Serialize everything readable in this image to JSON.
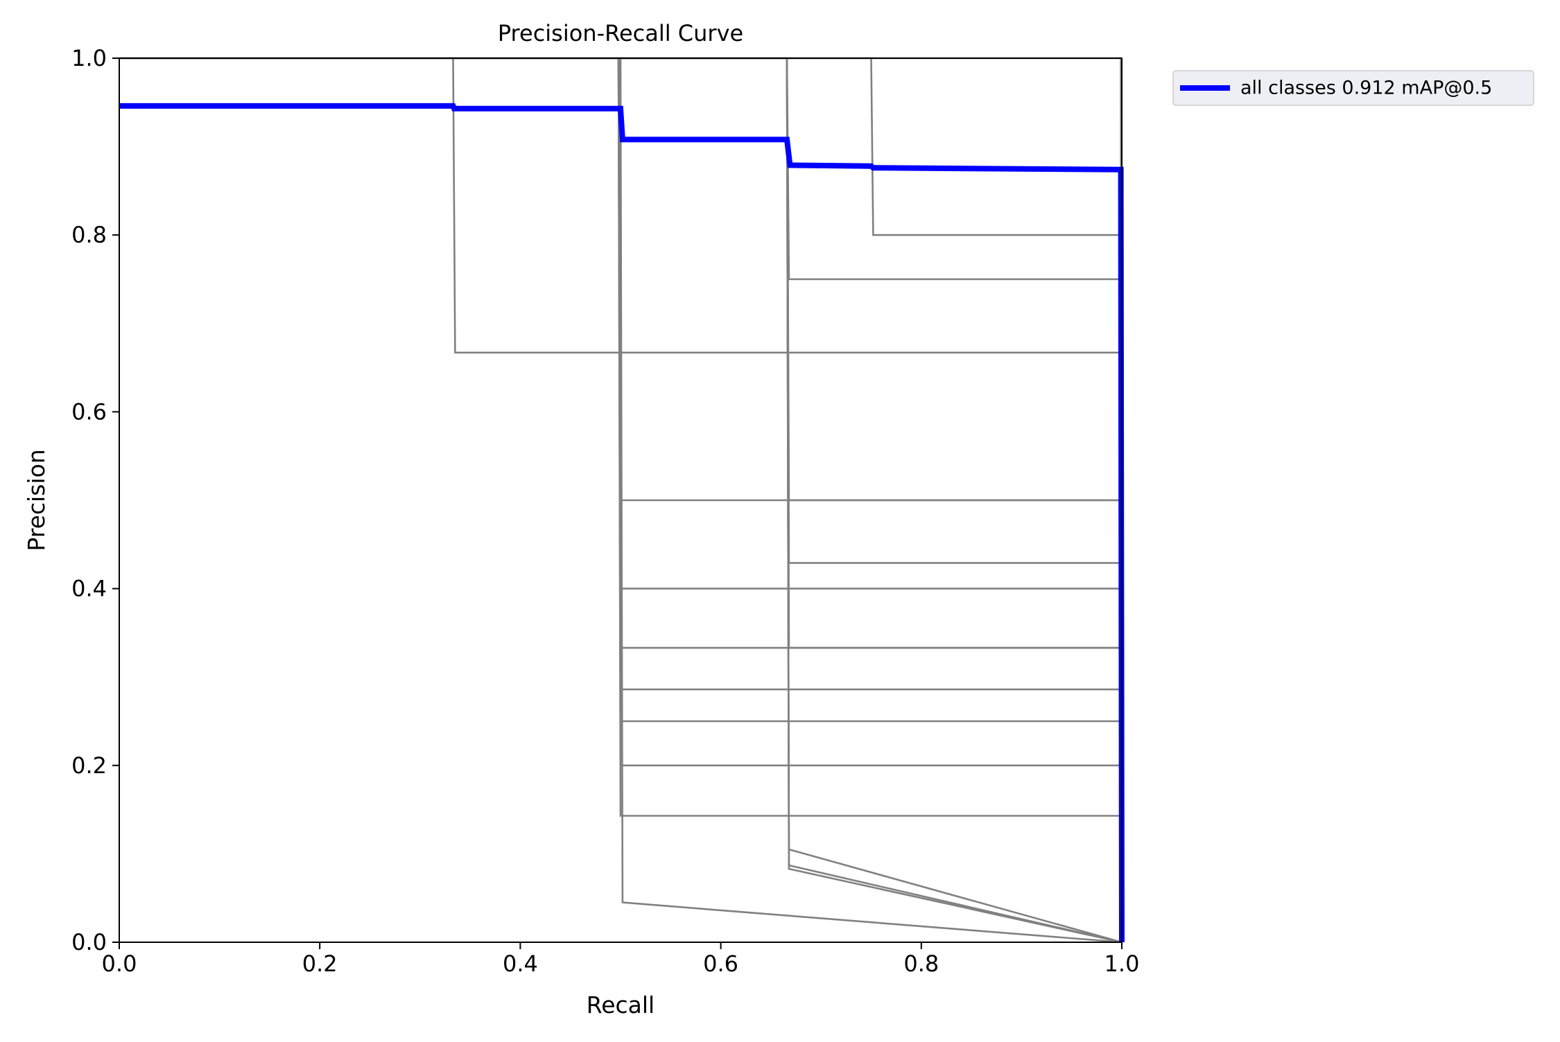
{
  "chart_data": {
    "type": "line",
    "title": "Precision-Recall Curve",
    "xlabel": "Recall",
    "ylabel": "Precision",
    "xlim": [
      0.0,
      1.0
    ],
    "ylim": [
      0.0,
      1.0
    ],
    "xticks": [
      "0.0",
      "0.2",
      "0.4",
      "0.6",
      "0.8",
      "1.0"
    ],
    "yticks": [
      "0.0",
      "0.2",
      "0.4",
      "0.6",
      "0.8",
      "1.0"
    ],
    "grid": false,
    "legend": {
      "placement": "outside-top-right",
      "entries": [
        {
          "label": "all classes 0.912 mAP@0.5",
          "color": "#0000ff"
        }
      ]
    },
    "colors": {
      "main_series": "#0000ff",
      "class_series": "#808080",
      "axes": "#000000"
    },
    "series": [
      {
        "name": "all classes 0.912 mAP@0.5",
        "role": "main",
        "x": [
          0.0,
          0.333,
          0.334,
          0.5,
          0.502,
          0.666,
          0.669,
          0.75,
          0.752,
          0.997,
          0.999,
          1.0
        ],
        "y": [
          0.946,
          0.946,
          0.943,
          0.943,
          0.908,
          0.908,
          0.879,
          0.878,
          0.876,
          0.874,
          0.874,
          0.0
        ]
      },
      {
        "role": "class",
        "x": [
          0.0,
          0.333,
          0.335,
          0.5,
          0.502,
          0.666,
          0.668,
          0.75,
          0.752,
          0.997,
          0.999,
          1.0
        ],
        "y": [
          1.0,
          1.0,
          0.667,
          0.667,
          0.667,
          0.667,
          0.667,
          0.667,
          0.667,
          0.667,
          0.667,
          0.0
        ]
      },
      {
        "role": "class",
        "x": [
          0.0,
          0.498,
          0.5,
          0.997,
          0.999,
          1.0
        ],
        "y": [
          1.0,
          1.0,
          0.5,
          0.5,
          0.5,
          0.0
        ]
      },
      {
        "role": "class",
        "x": [
          0.0,
          0.498,
          0.5,
          0.997,
          0.999,
          1.0
        ],
        "y": [
          1.0,
          1.0,
          0.333,
          0.333,
          0.333,
          0.0
        ]
      },
      {
        "role": "class",
        "x": [
          0.0,
          0.498,
          0.5,
          0.997,
          0.999,
          1.0
        ],
        "y": [
          1.0,
          1.0,
          0.25,
          0.25,
          0.25,
          0.0
        ]
      },
      {
        "role": "class",
        "x": [
          0.0,
          0.498,
          0.5,
          0.997,
          0.999,
          1.0
        ],
        "y": [
          1.0,
          1.0,
          0.2,
          0.2,
          0.2,
          0.0
        ]
      },
      {
        "role": "class",
        "x": [
          0.0,
          0.498,
          0.5,
          0.997,
          0.999,
          1.0
        ],
        "y": [
          1.0,
          1.0,
          0.143,
          0.143,
          0.143,
          0.0
        ]
      },
      {
        "role": "class",
        "x": [
          0.0,
          0.499,
          0.501,
          0.997,
          0.999,
          1.0
        ],
        "y": [
          1.0,
          1.0,
          0.4,
          0.4,
          0.4,
          0.0
        ]
      },
      {
        "role": "class",
        "x": [
          0.0,
          0.499,
          0.501,
          0.997,
          0.999,
          1.0
        ],
        "y": [
          1.0,
          1.0,
          0.286,
          0.286,
          0.286,
          0.0
        ]
      },
      {
        "role": "class",
        "x": [
          0.0,
          0.5,
          0.502,
          1.0
        ],
        "y": [
          1.0,
          1.0,
          0.045,
          0.0
        ]
      },
      {
        "role": "class",
        "x": [
          0.0,
          0.666,
          0.668,
          0.997,
          0.999,
          1.0
        ],
        "y": [
          1.0,
          1.0,
          0.75,
          0.75,
          0.75,
          0.0
        ]
      },
      {
        "role": "class",
        "x": [
          0.0,
          0.666,
          0.668,
          0.997,
          0.999,
          1.0
        ],
        "y": [
          1.0,
          1.0,
          0.5,
          0.5,
          0.5,
          0.0
        ]
      },
      {
        "role": "class",
        "x": [
          0.0,
          0.666,
          0.668,
          0.997,
          0.999,
          1.0
        ],
        "y": [
          1.0,
          1.0,
          0.429,
          0.429,
          0.429,
          0.0
        ]
      },
      {
        "role": "class",
        "x": [
          0.0,
          0.666,
          0.668,
          0.997,
          0.999,
          1.0
        ],
        "y": [
          1.0,
          1.0,
          0.333,
          0.333,
          0.333,
          0.0
        ]
      },
      {
        "role": "class",
        "x": [
          0.0,
          0.666,
          0.668,
          1.0
        ],
        "y": [
          1.0,
          1.0,
          0.105,
          0.0
        ]
      },
      {
        "role": "class",
        "x": [
          0.0,
          0.666,
          0.668,
          1.0
        ],
        "y": [
          1.0,
          1.0,
          0.087,
          0.0
        ]
      },
      {
        "role": "class",
        "x": [
          0.0,
          0.666,
          0.668,
          1.0
        ],
        "y": [
          1.0,
          1.0,
          0.083,
          0.0
        ]
      },
      {
        "role": "class",
        "x": [
          0.0,
          0.75,
          0.752,
          0.997,
          0.999,
          1.0
        ],
        "y": [
          1.0,
          1.0,
          0.8,
          0.8,
          0.8,
          0.0
        ]
      },
      {
        "role": "class",
        "x": [
          0.0,
          0.997,
          0.999,
          1.0
        ],
        "y": [
          1.0,
          1.0,
          1.0,
          0.0
        ]
      }
    ]
  }
}
